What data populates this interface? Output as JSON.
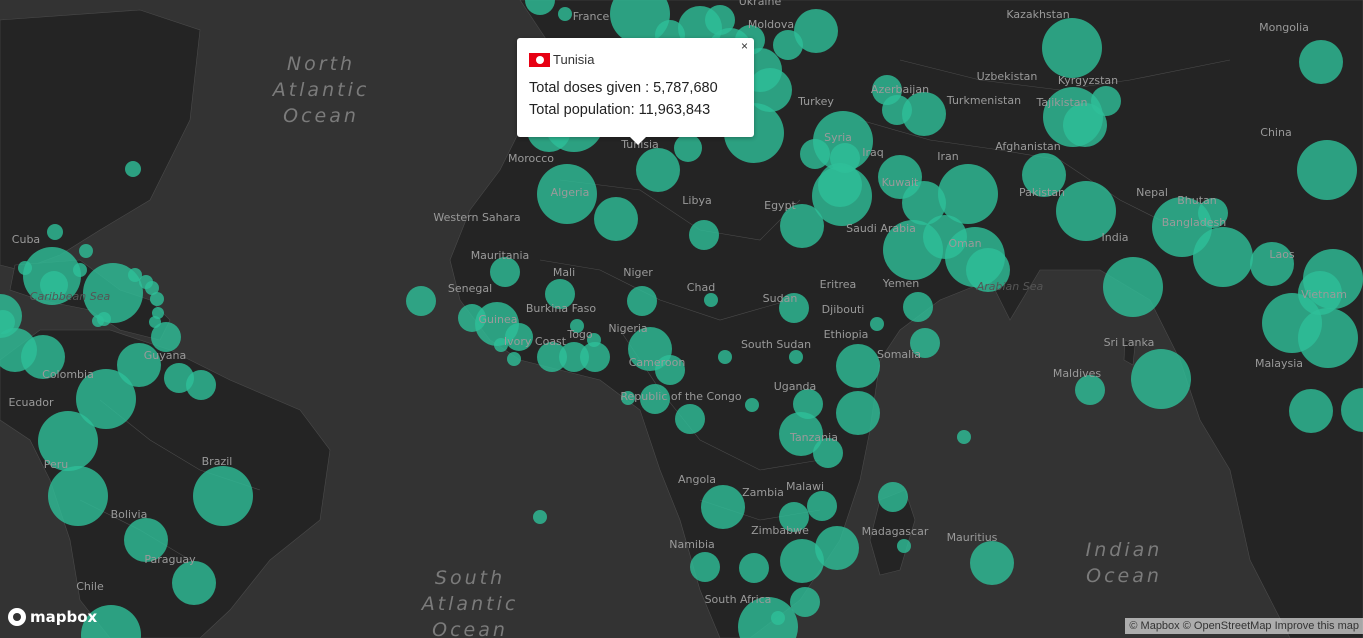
{
  "map": {
    "ocean_labels": [
      {
        "lines": [
          "North",
          "Atlantic",
          "Ocean"
        ]
      },
      {
        "lines": [
          "South",
          "Atlantic",
          "Ocean"
        ]
      },
      {
        "lines": [
          "Indian",
          "Ocean"
        ]
      }
    ],
    "sea_labels": [
      "Arabian Sea",
      "Caribbean Sea"
    ],
    "country_labels": [
      "France",
      "Ukraine",
      "Moldova",
      "Kazakhstan",
      "Mongolia",
      "Uzbekistan",
      "Kyrgyzstan",
      "Azerbaijan",
      "Turkmenistan",
      "Tajikistan",
      "Turkey",
      "Syria",
      "Iraq",
      "Iran",
      "Afghanistan",
      "China",
      "Morocco",
      "Tunisia",
      "Algeria",
      "Libya",
      "Egypt",
      "Kuwait",
      "Pakistan",
      "Nepal",
      "Bhutan",
      "Bangladesh",
      "India",
      "Laos",
      "Western Sahara",
      "Mauritania",
      "Mali",
      "Niger",
      "Chad",
      "Sudan",
      "Saudi Arabia",
      "Oman",
      "Yemen",
      "Eritrea",
      "Djibouti",
      "Senegal",
      "Guinea",
      "Burkina Faso",
      "Togo",
      "Nigeria",
      "Ivory Coast",
      "South Sudan",
      "Ethiopia",
      "Somalia",
      "Sri Lanka",
      "Vietnam",
      "Malaysia",
      "Maldives",
      "Cameroon",
      "Uganda",
      "Republic of the Congo",
      "Tanzania",
      "Cuba",
      "Guyana",
      "Colombia",
      "Ecuador",
      "Peru",
      "Brazil",
      "Bolivia",
      "Paraguay",
      "Chile",
      "Angola",
      "Zambia",
      "Malawi",
      "Namibia",
      "Zimbabwe",
      "Madagascar",
      "Mauritius",
      "South Africa"
    ],
    "colors": {
      "background": "#333333",
      "bubble": "#2ebf98"
    }
  },
  "popup": {
    "country": "Tunisia",
    "flag": "tunisia-flag",
    "close_label": "×",
    "doses_label": "Total doses given : 5,787,680",
    "population_label": "Total population: 11,963,843",
    "total_doses": 5787680,
    "total_population": 11963843
  },
  "logo": {
    "text": "mapbox",
    "icon": "mapbox-logo-icon"
  },
  "attribution": {
    "mapbox": "© Mapbox",
    "osm": "© OpenStreetMap",
    "improve": "Improve this map"
  }
}
